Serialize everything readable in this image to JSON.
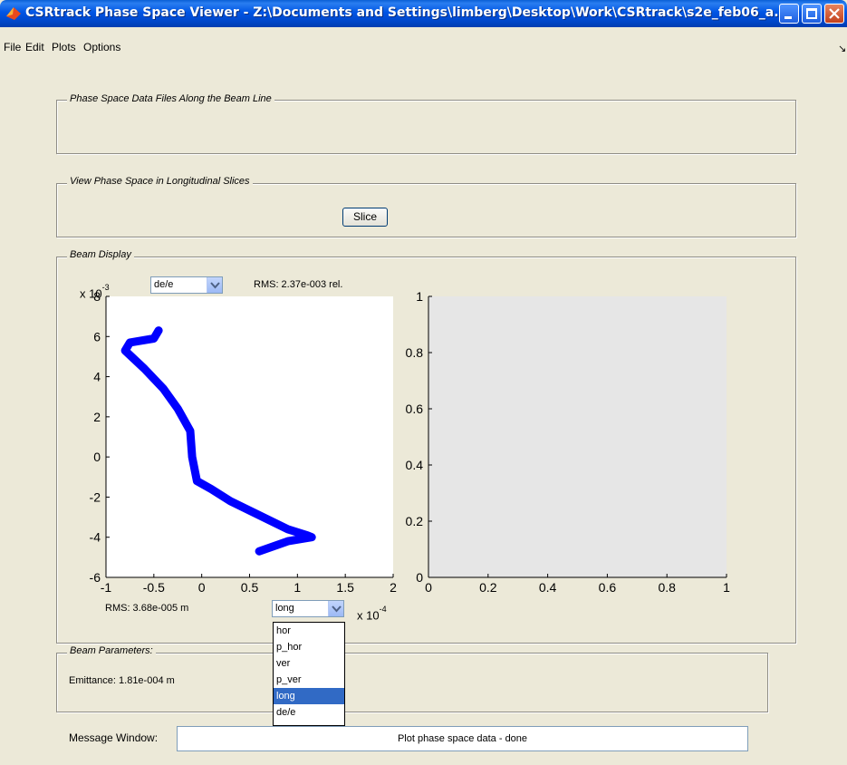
{
  "window": {
    "title": "CSRtrack Phase Space Viewer - Z:\\Documents and Settings\\limberg\\Desktop\\Work\\CSRtrack\\s2e_feb06_a..."
  },
  "menu": [
    "File",
    "Edit",
    "Plots",
    "Options"
  ],
  "panels": {
    "files_title": "Phase Space Data Files Along the Beam Line",
    "slices_title": "View Phase Space in Longitudinal Slices",
    "slice_button": "Slice",
    "beam_display_title": "Beam Display",
    "beam_params_title": "Beam Parameters:",
    "emittance": "Emittance: 1.81e-004 m"
  },
  "left_plot": {
    "y_select": "de/e",
    "y_rms": "RMS: 2.37e-003 rel.",
    "y_exponent_base": "x 10",
    "y_exponent": "-3",
    "x_rms": "RMS: 3.68e-005 m",
    "x_select": "long",
    "x_exponent_base": "x 10",
    "x_exponent": "-4",
    "x_ticks": [
      "-1",
      "-0.5",
      "0",
      "0.5",
      "1",
      "1.5",
      "2"
    ],
    "y_ticks": [
      "-6",
      "-4",
      "-2",
      "0",
      "2",
      "4",
      "6",
      "8"
    ]
  },
  "right_plot": {
    "x_ticks": [
      "0",
      "0.2",
      "0.4",
      "0.6",
      "0.8",
      "1"
    ],
    "y_ticks": [
      "0",
      "0.2",
      "0.4",
      "0.6",
      "0.8",
      "1"
    ],
    "background": "#e6e6e6"
  },
  "dropdown_options": [
    "hor",
    "p_hor",
    "ver",
    "p_ver",
    "long",
    "de/e"
  ],
  "dropdown_selected": "long",
  "message": {
    "label": "Message Window:",
    "text": "Plot phase space data - done"
  },
  "chart_data": {
    "type": "scatter",
    "series_color": "#0000ff",
    "x_multiplier": "1e-4",
    "y_multiplier": "1e-3",
    "xlim": [
      -1,
      2
    ],
    "ylim": [
      -6,
      8
    ],
    "x": [
      -0.45,
      -0.5,
      -0.75,
      -0.8,
      -0.6,
      -0.4,
      -0.25,
      -0.12,
      -0.1,
      -0.05,
      0.1,
      0.3,
      0.6,
      0.9,
      1.1,
      1.15,
      0.9,
      0.6
    ],
    "y": [
      6.3,
      5.9,
      5.7,
      5.3,
      4.4,
      3.4,
      2.4,
      1.3,
      0.0,
      -1.2,
      -1.6,
      -2.2,
      -2.9,
      -3.6,
      -3.9,
      -4.0,
      -4.2,
      -4.7
    ]
  }
}
